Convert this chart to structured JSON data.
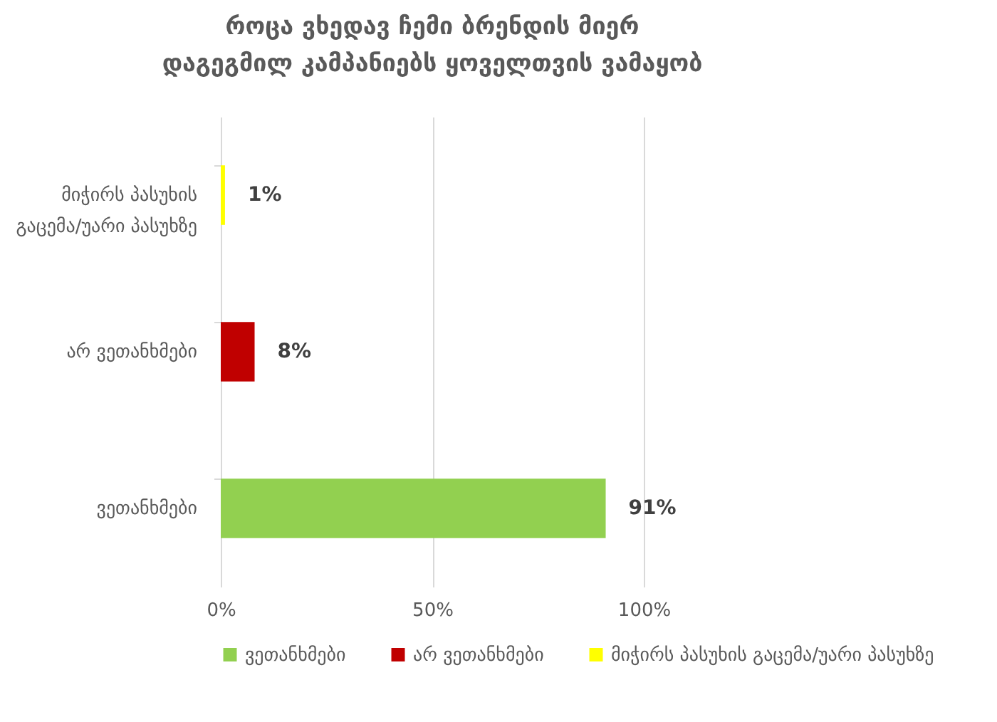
{
  "chart_data": {
    "type": "bar",
    "orientation": "horizontal",
    "title": "როცა ვხედავ ჩემი ბრენდის მიერ დაგეგმილ კამპანიებს ყოველთვის ვამაყობ",
    "categories": [
      "მიჭირს პასუხის გაცემა/უარი პასუხზე",
      "არ ვეთანხმები",
      "ვეთანხმები"
    ],
    "series": [
      {
        "name": "ვეთანხმები",
        "color": "#92d050",
        "values": [
          null,
          null,
          91
        ],
        "value_labels": [
          null,
          null,
          "91%"
        ]
      },
      {
        "name": "არ ვეთანხმები",
        "color": "#c00000",
        "values": [
          null,
          8,
          null
        ],
        "value_labels": [
          null,
          "8%",
          null
        ]
      },
      {
        "name": "მიჭირს პასუხის გაცემა/უარი პასუხზე",
        "color": "#ffff00",
        "values": [
          1,
          null,
          null
        ],
        "value_labels": [
          "1%",
          null,
          null
        ]
      }
    ],
    "xlim": [
      0,
      100
    ],
    "xticks": [
      {
        "value": 0,
        "label": "0%"
      },
      {
        "value": 50,
        "label": "50%"
      },
      {
        "value": 100,
        "label": "100%"
      }
    ],
    "grid": "x",
    "legend": "bottom"
  }
}
